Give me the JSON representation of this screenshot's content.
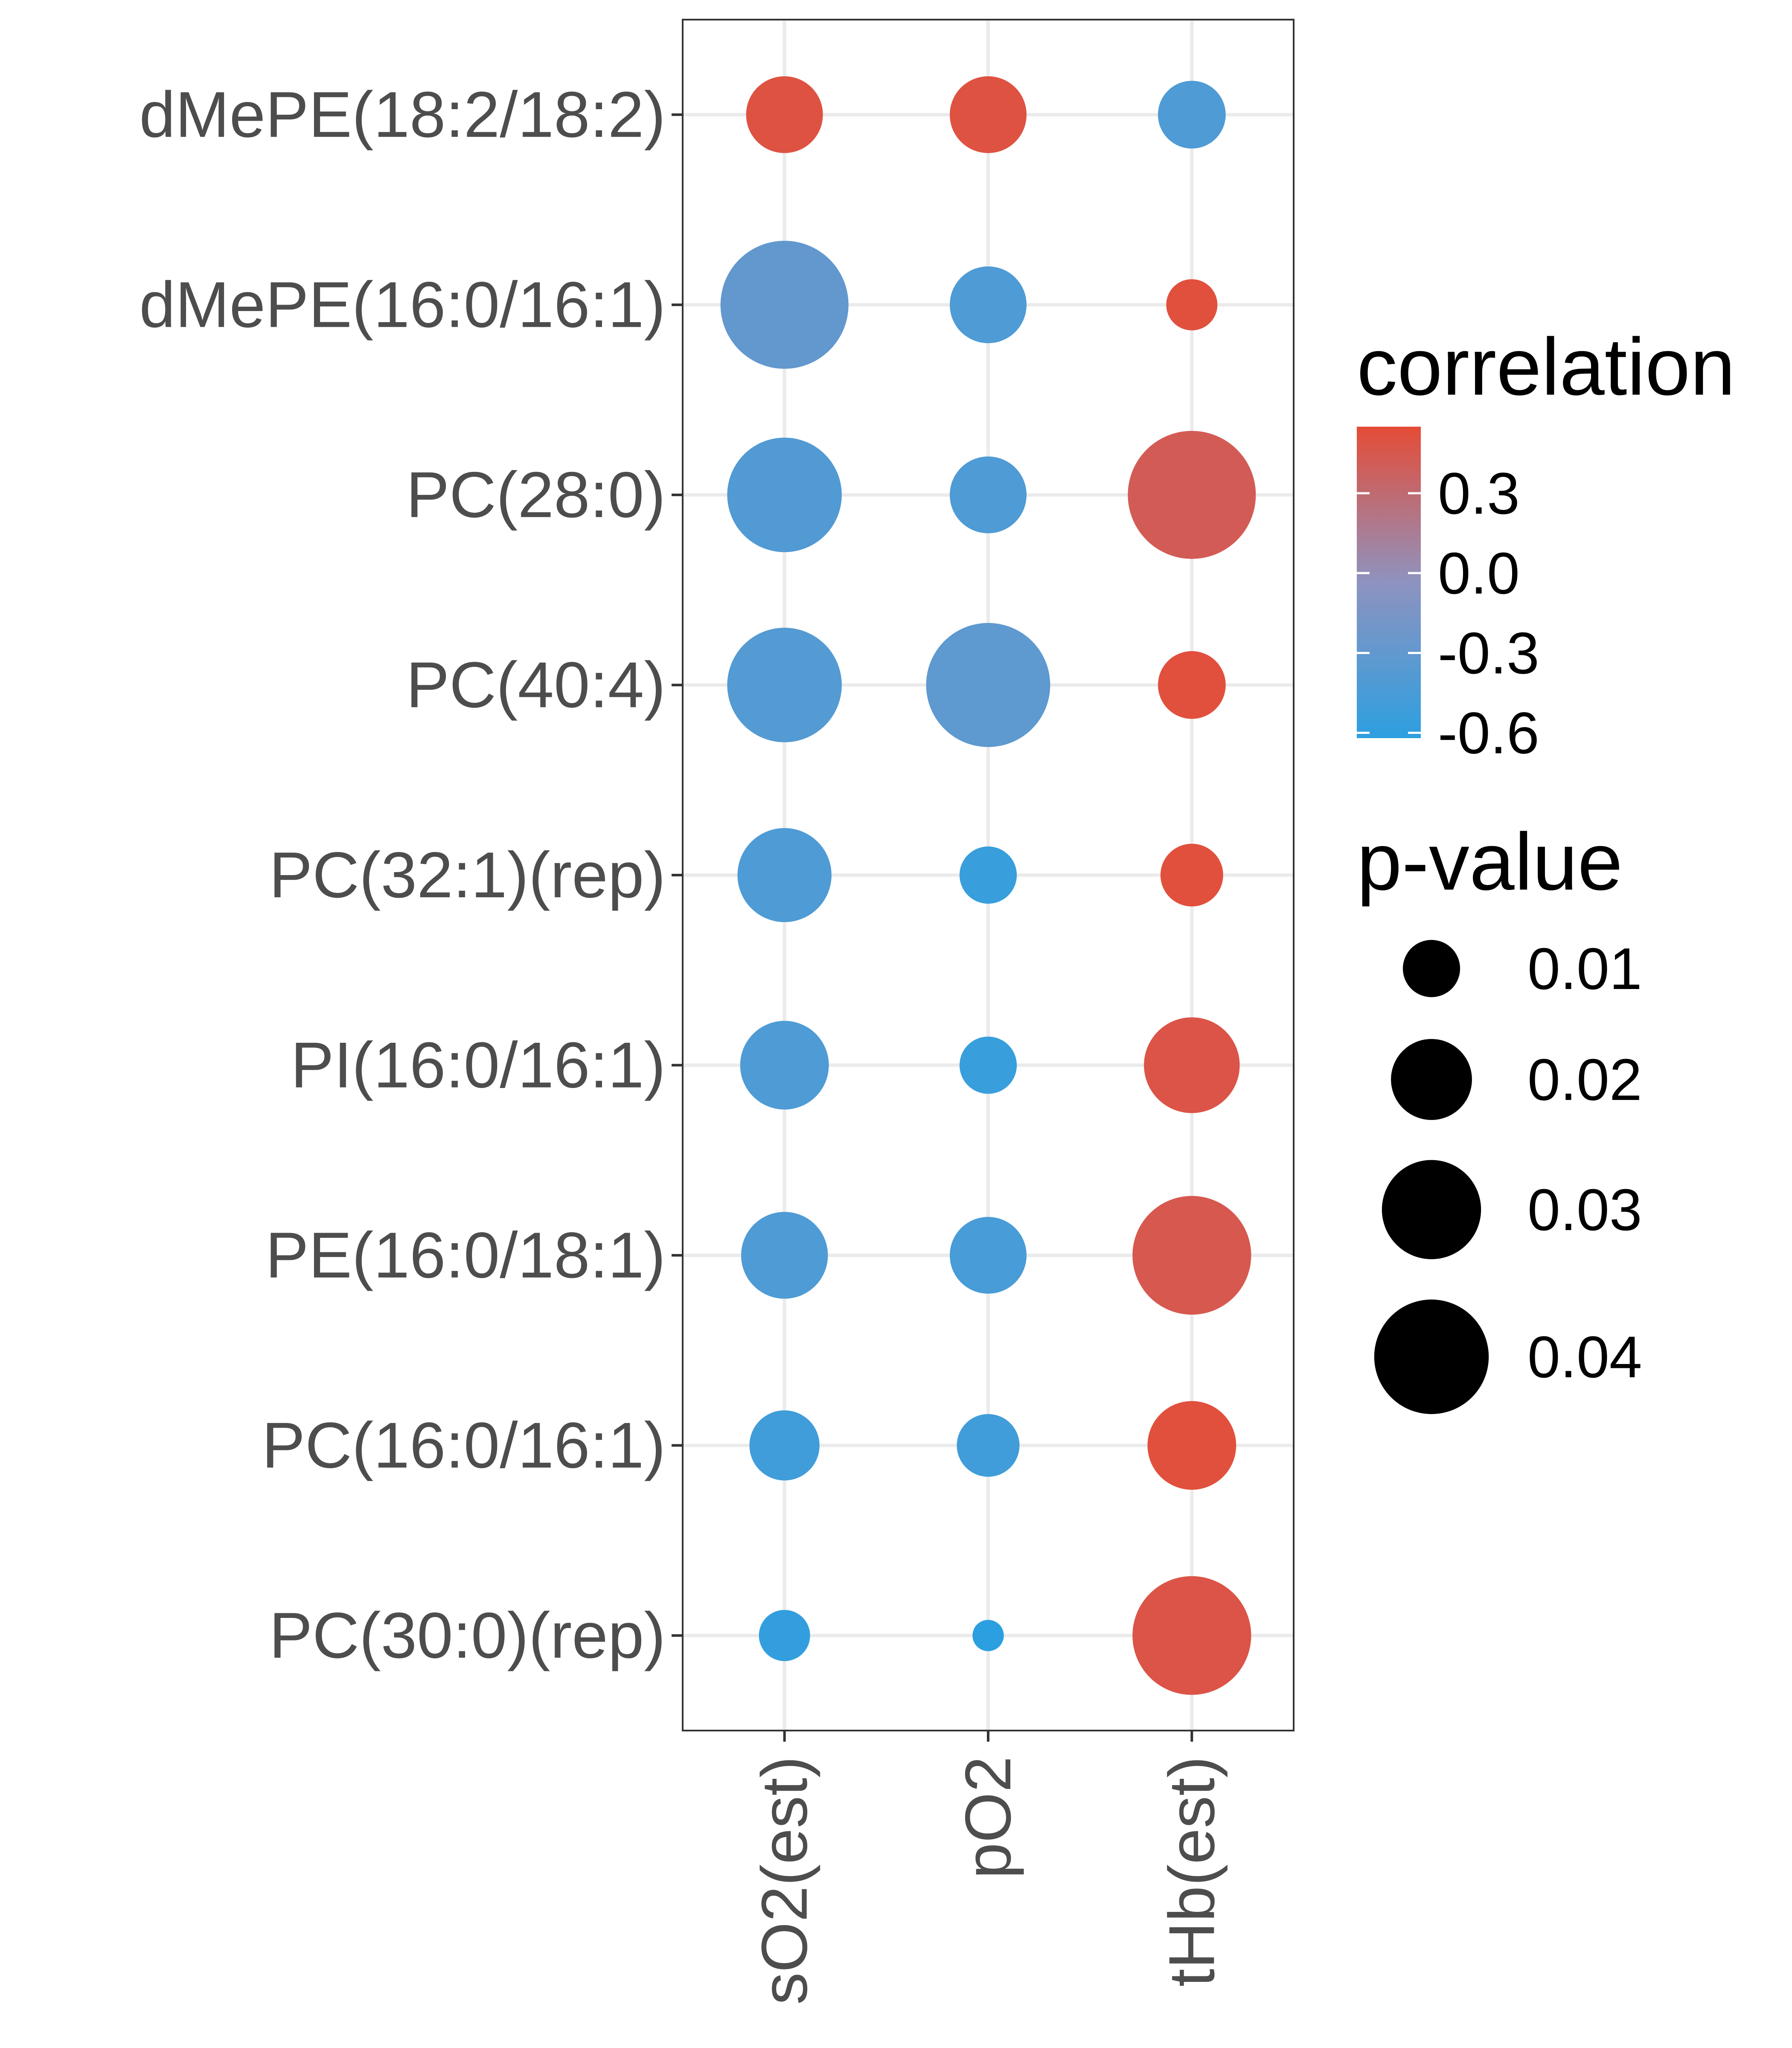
{
  "chart_data": {
    "type": "scatter",
    "subtype": "bubble-matrix",
    "x_categories": [
      "sO2(est)",
      "pO2",
      "tHb(est)"
    ],
    "y_categories": [
      "dMePE(18:2/18:2)",
      "dMePE(16:0/16:1)",
      "PC(28:0)",
      "PC(40:4)",
      "PC(32:1)(rep)",
      "PI(16:0/16:1)",
      "PE(16:0/18:1)",
      "PC(16:0/16:1)",
      "PC(30:0)(rep)"
    ],
    "points": [
      {
        "x": "sO2(est)",
        "y": "dMePE(18:2/18:2)",
        "correlation": 0.5,
        "p_value": 0.018
      },
      {
        "x": "pO2",
        "y": "dMePE(18:2/18:2)",
        "correlation": 0.5,
        "p_value": 0.018
      },
      {
        "x": "tHb(est)",
        "y": "dMePE(18:2/18:2)",
        "correlation": -0.42,
        "p_value": 0.014
      },
      {
        "x": "sO2(est)",
        "y": "dMePE(16:0/16:1)",
        "correlation": -0.3,
        "p_value": 0.05
      },
      {
        "x": "pO2",
        "y": "dMePE(16:0/16:1)",
        "correlation": -0.42,
        "p_value": 0.018
      },
      {
        "x": "tHb(est)",
        "y": "dMePE(16:0/16:1)",
        "correlation": 0.52,
        "p_value": 0.008
      },
      {
        "x": "sO2(est)",
        "y": "PC(28:0)",
        "correlation": -0.4,
        "p_value": 0.04
      },
      {
        "x": "pO2",
        "y": "PC(28:0)",
        "correlation": -0.42,
        "p_value": 0.018
      },
      {
        "x": "tHb(est)",
        "y": "PC(28:0)",
        "correlation": 0.42,
        "p_value": 0.05
      },
      {
        "x": "sO2(est)",
        "y": "PC(40:4)",
        "correlation": -0.38,
        "p_value": 0.04
      },
      {
        "x": "pO2",
        "y": "PC(40:4)",
        "correlation": -0.32,
        "p_value": 0.047
      },
      {
        "x": "tHb(est)",
        "y": "PC(40:4)",
        "correlation": 0.52,
        "p_value": 0.014
      },
      {
        "x": "sO2(est)",
        "y": "PC(32:1)(rep)",
        "correlation": -0.42,
        "p_value": 0.027
      },
      {
        "x": "pO2",
        "y": "PC(32:1)(rep)",
        "correlation": -0.55,
        "p_value": 0.01
      },
      {
        "x": "tHb(est)",
        "y": "PC(32:1)(rep)",
        "correlation": 0.52,
        "p_value": 0.012
      },
      {
        "x": "sO2(est)",
        "y": "PI(16:0/16:1)",
        "correlation": -0.42,
        "p_value": 0.024
      },
      {
        "x": "pO2",
        "y": "PI(16:0/16:1)",
        "correlation": -0.55,
        "p_value": 0.01
      },
      {
        "x": "tHb(est)",
        "y": "PI(16:0/16:1)",
        "correlation": 0.48,
        "p_value": 0.028
      },
      {
        "x": "sO2(est)",
        "y": "PE(16:0/18:1)",
        "correlation": -0.42,
        "p_value": 0.023
      },
      {
        "x": "pO2",
        "y": "PE(16:0/18:1)",
        "correlation": -0.45,
        "p_value": 0.018
      },
      {
        "x": "tHb(est)",
        "y": "PE(16:0/18:1)",
        "correlation": 0.45,
        "p_value": 0.043
      },
      {
        "x": "sO2(est)",
        "y": "PC(16:0/16:1)",
        "correlation": -0.5,
        "p_value": 0.015
      },
      {
        "x": "pO2",
        "y": "PC(16:0/16:1)",
        "correlation": -0.5,
        "p_value": 0.012
      },
      {
        "x": "tHb(est)",
        "y": "PC(16:0/16:1)",
        "correlation": 0.52,
        "p_value": 0.024
      },
      {
        "x": "sO2(est)",
        "y": "PC(30:0)(rep)",
        "correlation": -0.58,
        "p_value": 0.008
      },
      {
        "x": "pO2",
        "y": "PC(30:0)(rep)",
        "correlation": -0.62,
        "p_value": 0.003
      },
      {
        "x": "tHb(est)",
        "y": "PC(30:0)(rep)",
        "correlation": 0.48,
        "p_value": 0.043
      }
    ],
    "color_scale": {
      "title": "correlation",
      "domain": [
        -0.62,
        0.55
      ],
      "ticks": [
        "0.3",
        "0.0",
        "-0.3",
        "-0.6"
      ],
      "tick_values": [
        0.3,
        0.0,
        -0.3,
        -0.6
      ],
      "low_color": "#2c9fe0",
      "mid_color": "#8e93c0",
      "high_color": "#e54c36"
    },
    "size_scale": {
      "title": "p-value",
      "domain": [
        0.0,
        0.05
      ],
      "ticks": [
        "0.01",
        "0.02",
        "0.03",
        "0.04"
      ],
      "tick_values": [
        0.01,
        0.02,
        0.03,
        0.04
      ]
    },
    "grid": true,
    "legend_position": "right"
  }
}
